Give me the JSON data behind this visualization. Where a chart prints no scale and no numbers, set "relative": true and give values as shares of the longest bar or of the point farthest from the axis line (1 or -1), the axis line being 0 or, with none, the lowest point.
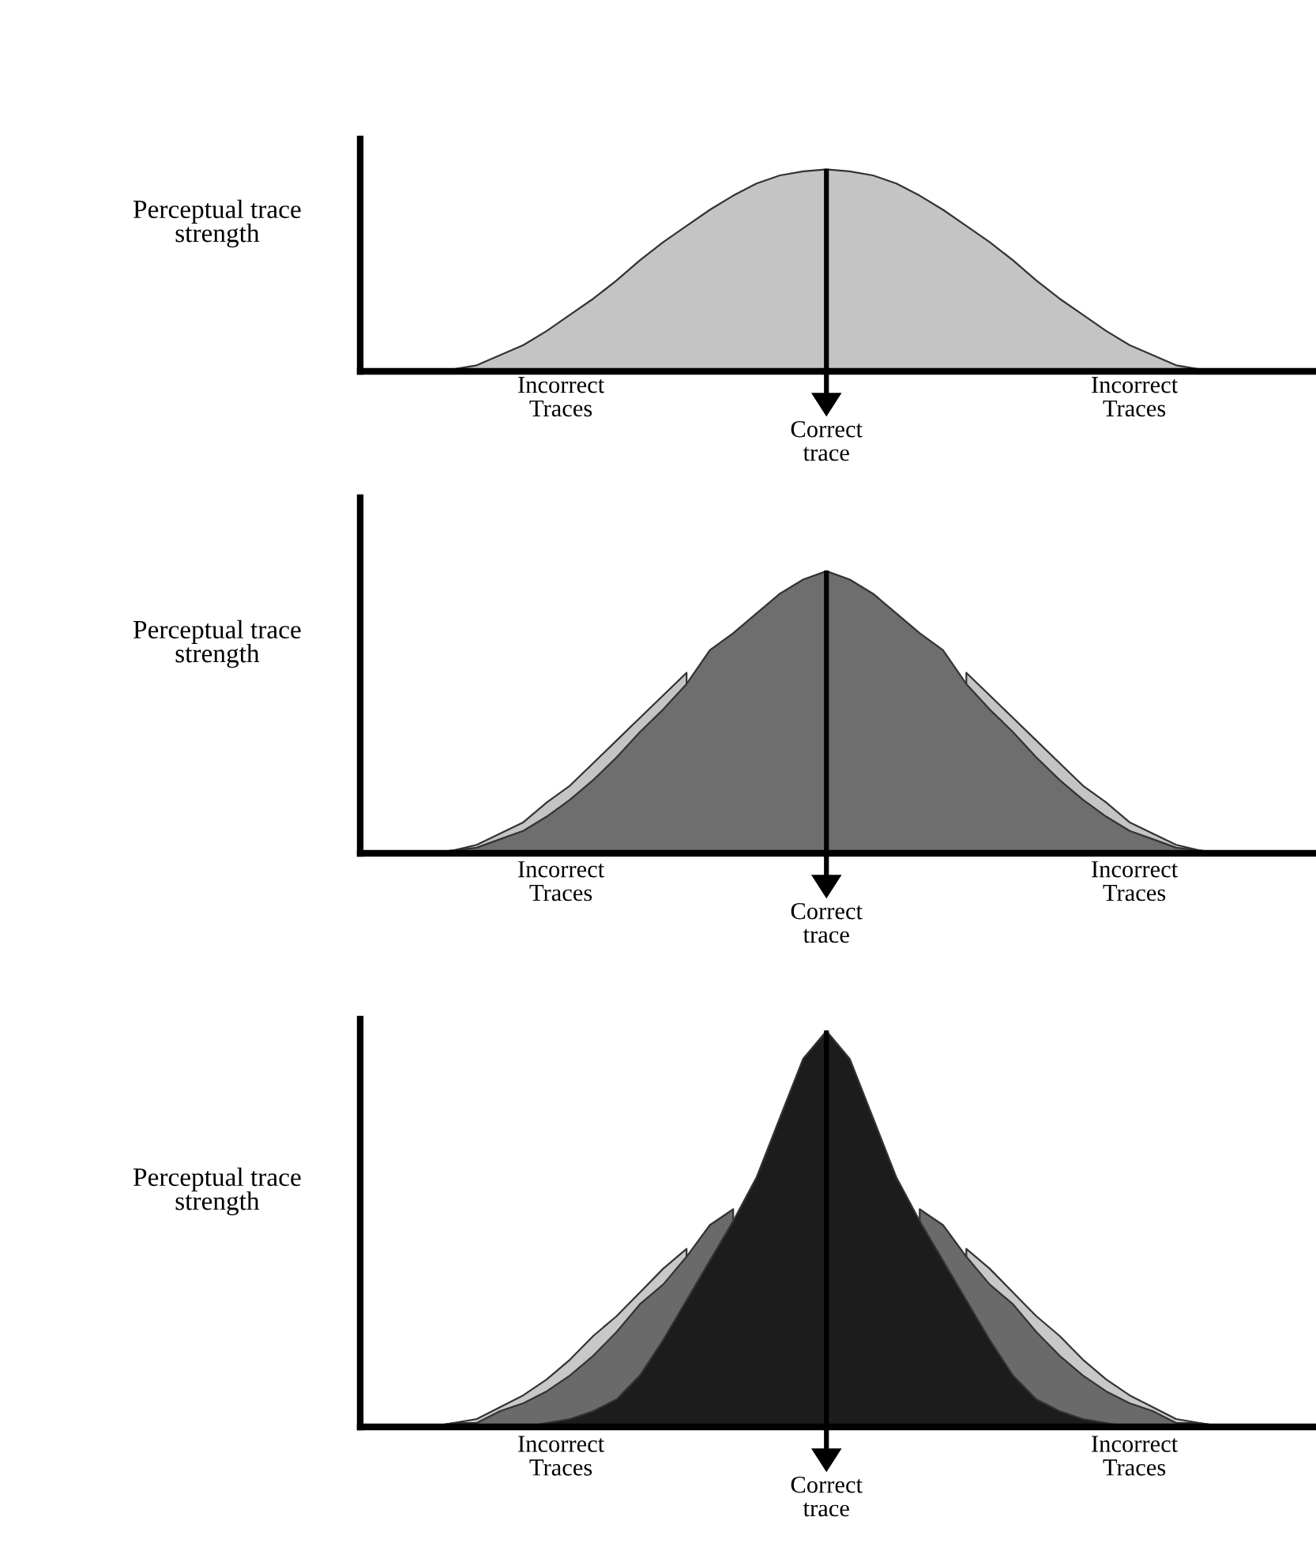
{
  "chart_data": [
    {
      "type": "area",
      "relative": true,
      "ylabel": "Perceptual trace\nstrength",
      "categories": [
        null,
        null,
        null,
        null,
        null,
        null,
        null,
        null,
        null,
        null,
        null,
        null,
        null,
        null,
        null,
        null,
        null,
        null,
        null,
        null,
        null,
        null,
        null,
        null,
        null,
        null,
        null,
        null,
        null,
        null,
        null,
        null,
        null,
        null,
        null,
        null,
        null,
        null,
        null,
        null,
        null
      ],
      "series": [
        {
          "color": "#c4c4c4",
          "values": [
            null,
            null,
            null,
            0,
            0.01,
            0.03,
            0.08,
            0.13,
            0.2,
            0.28,
            0.36,
            0.45,
            0.55,
            0.64,
            0.72,
            0.8,
            0.87,
            0.93,
            0.97,
            0.99,
            1,
            0.99,
            0.97,
            0.93,
            0.87,
            0.8,
            0.72,
            0.64,
            0.55,
            0.45,
            0.36,
            0.28,
            0.2,
            0.13,
            0.08,
            0.03,
            0.01,
            0,
            null,
            null,
            null
          ]
        }
      ],
      "annotations": [
        "Incorrect\nTraces",
        "Correct\ntrace",
        "Incorrect\nTraces"
      ]
    },
    {
      "type": "area",
      "relative": true,
      "ylabel": "Perceptual trace\nstrength",
      "categories": [
        null,
        null,
        null,
        null,
        null,
        null,
        null,
        null,
        null,
        null,
        null,
        null,
        null,
        null,
        null,
        null,
        null,
        null,
        null,
        null,
        null,
        null,
        null,
        null,
        null,
        null,
        null,
        null,
        null,
        null,
        null,
        null,
        null,
        null,
        null,
        null,
        null,
        null,
        null,
        null,
        null
      ],
      "series": [
        {
          "color": "#c4c4c4",
          "values": [
            null,
            null,
            null,
            0,
            0.01,
            0.03,
            0.07,
            0.11,
            0.18,
            0.24,
            0.32,
            0.4,
            0.48,
            0.56,
            0.64,
            null,
            null,
            null,
            null,
            null,
            null,
            null,
            null,
            null,
            null,
            null,
            0.64,
            0.56,
            0.48,
            0.4,
            0.32,
            0.24,
            0.18,
            0.11,
            0.07,
            0.03,
            0.01,
            0,
            null,
            null,
            null
          ]
        },
        {
          "color": "#6e6e6e",
          "values": [
            null,
            null,
            null,
            0,
            0.01,
            0.02,
            0.05,
            0.08,
            0.13,
            0.19,
            0.26,
            0.34,
            0.43,
            0.51,
            0.6,
            0.72,
            0.78,
            0.85,
            0.92,
            0.97,
            1,
            0.97,
            0.92,
            0.85,
            0.78,
            0.72,
            0.6,
            0.51,
            0.43,
            0.34,
            0.26,
            0.19,
            0.13,
            0.08,
            0.05,
            0.02,
            0.01,
            0,
            null,
            null,
            null
          ]
        }
      ],
      "annotations": [
        "Incorrect\nTraces",
        "Correct\ntrace",
        "Incorrect\nTraces"
      ]
    },
    {
      "type": "area",
      "relative": true,
      "ylabel": "Perceptual trace\nstrength",
      "categories": [
        null,
        null,
        null,
        null,
        null,
        null,
        null,
        null,
        null,
        null,
        null,
        null,
        null,
        null,
        null,
        null,
        null,
        null,
        null,
        null,
        null,
        null,
        null,
        null,
        null,
        null,
        null,
        null,
        null,
        null,
        null,
        null,
        null,
        null,
        null,
        null,
        null,
        null,
        null,
        null,
        null
      ],
      "series": [
        {
          "color": "#c8c8c8",
          "values": [
            null,
            null,
            null,
            0,
            0.01,
            0.02,
            0.05,
            0.08,
            0.12,
            0.17,
            0.23,
            0.28,
            0.34,
            0.4,
            0.45,
            null,
            null,
            null,
            null,
            null,
            null,
            null,
            null,
            null,
            null,
            null,
            0.45,
            0.4,
            0.34,
            0.28,
            0.23,
            0.17,
            0.12,
            0.08,
            0.05,
            0.02,
            0.01,
            0,
            null,
            null,
            null
          ]
        },
        {
          "color": "#6a6a6a",
          "values": [
            null,
            null,
            null,
            0,
            0.01,
            0.01,
            0.04,
            0.06,
            0.09,
            0.13,
            0.18,
            0.24,
            0.31,
            0.36,
            0.43,
            0.51,
            0.55,
            null,
            null,
            null,
            null,
            null,
            null,
            null,
            0.55,
            0.51,
            0.43,
            0.36,
            0.31,
            0.24,
            0.18,
            0.13,
            0.09,
            0.06,
            0.04,
            0.01,
            0.01,
            0,
            null,
            null,
            null
          ]
        },
        {
          "color": "#1c1c1c",
          "values": [
            null,
            null,
            null,
            null,
            null,
            null,
            null,
            0,
            0.01,
            0.02,
            0.04,
            0.07,
            0.13,
            0.22,
            0.32,
            0.42,
            0.52,
            0.63,
            0.78,
            0.93,
            1,
            0.93,
            0.78,
            0.63,
            0.52,
            0.42,
            0.32,
            0.22,
            0.13,
            0.07,
            0.04,
            0.02,
            0.01,
            0,
            null,
            null,
            null,
            null,
            null,
            null,
            null
          ]
        }
      ],
      "annotations": [
        "Incorrect\nTraces",
        "Correct\ntrace",
        "Incorrect\nTraces"
      ]
    }
  ]
}
